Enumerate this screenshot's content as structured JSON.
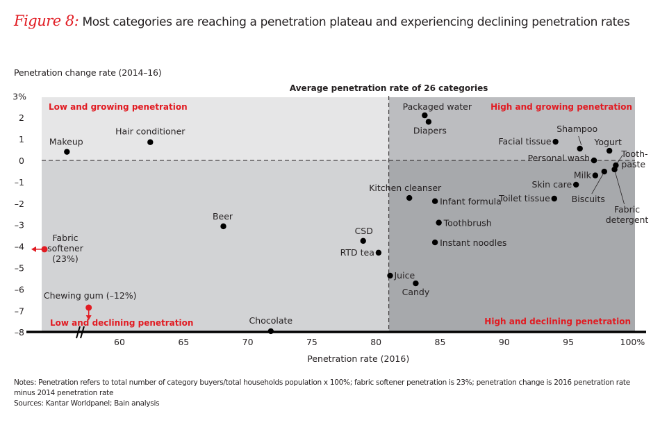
{
  "header": {
    "figure_label": "Figure 8:",
    "title": "Most categories are reaching a penetration plateau and experiencing declining penetration rates"
  },
  "notes": {
    "line1": "Notes: Penetration refers to total number of category buyers/total households population x 100%; fabric softener penetration is 23%; penetration change is 2016 penetration rate",
    "line2": "minus 2014 penetration rate",
    "sources": "Sources: Kantar Worldpanel; Bain analysis"
  },
  "colors": {
    "accent": "#e11b22",
    "quadrant_top_left": "#e6e6e7",
    "quadrant_bottom_left": "#d2d3d5",
    "quadrant_top_right": "#bcbdc0",
    "quadrant_bottom_right": "#a7a9ac",
    "point": "#000000"
  },
  "chart_data": {
    "type": "scatter",
    "title": "Most categories are reaching a penetration plateau and experiencing declining penetration rates",
    "xlabel": "Penetration rate (2016)",
    "ylabel": "Penetration change rate (2014–16)",
    "xlim": [
      54,
      100.2
    ],
    "ylim": [
      -8,
      3
    ],
    "x_ticks": [
      {
        "value": 60,
        "label": "60"
      },
      {
        "value": 65,
        "label": "65"
      },
      {
        "value": 70,
        "label": "70"
      },
      {
        "value": 75,
        "label": "75"
      },
      {
        "value": 80,
        "label": "80"
      },
      {
        "value": 85,
        "label": "85"
      },
      {
        "value": 90,
        "label": "90"
      },
      {
        "value": 95,
        "label": "95"
      },
      {
        "value": 100,
        "label": "100%"
      }
    ],
    "y_ticks": [
      {
        "value": 3,
        "label": "3%"
      },
      {
        "value": 2,
        "label": "2"
      },
      {
        "value": 1,
        "label": "1"
      },
      {
        "value": 0,
        "label": "0"
      },
      {
        "value": -1,
        "label": "–1"
      },
      {
        "value": -2,
        "label": "–2"
      },
      {
        "value": -3,
        "label": "–3"
      },
      {
        "value": -4,
        "label": "–4"
      },
      {
        "value": -5,
        "label": "–5"
      },
      {
        "value": -6,
        "label": "–6"
      },
      {
        "value": -7,
        "label": "–7"
      },
      {
        "value": -8,
        "label": "–8"
      }
    ],
    "axis_break": true,
    "average_line": {
      "x": 81.0,
      "label": "Average penetration rate of 26 categories"
    },
    "zero_line": {
      "y": 0
    },
    "quadrants": {
      "top_left": "Low and growing penetration",
      "top_right": "High and growing penetration",
      "bottom_left": "Low and declining penetration",
      "bottom_right": "High and declining penetration"
    },
    "points": [
      {
        "label": "Makeup",
        "x": 55.9,
        "y": 0.4
      },
      {
        "label": "Hair conditioner",
        "x": 62.4,
        "y": 0.85
      },
      {
        "label": "Packaged water",
        "x": 83.8,
        "y": 2.1
      },
      {
        "label": "Diapers",
        "x": 84.1,
        "y": 1.8
      },
      {
        "label": "Facial tissue",
        "x": 94.0,
        "y": 0.87
      },
      {
        "label": "Shampoo",
        "x": 95.9,
        "y": 0.55
      },
      {
        "label": "Yogurt",
        "x": 98.2,
        "y": 0.45
      },
      {
        "label": "Personal wash",
        "x": 97.0,
        "y": 0.0
      },
      {
        "label": "Tooth-paste",
        "x": 98.7,
        "y": -0.23
      },
      {
        "label": "Fabric detergent",
        "x": 98.6,
        "y": -0.42
      },
      {
        "label": "Biscuits",
        "x": 97.8,
        "y": -0.52
      },
      {
        "label": "Milk",
        "x": 97.1,
        "y": -0.7
      },
      {
        "label": "Skin care",
        "x": 95.6,
        "y": -1.13
      },
      {
        "label": "Toilet tissue",
        "x": 93.9,
        "y": -1.78
      },
      {
        "label": "Kitchen cleanser",
        "x": 82.6,
        "y": -1.75
      },
      {
        "label": "Infant formula",
        "x": 84.6,
        "y": -1.9
      },
      {
        "label": "Toothbrush",
        "x": 84.9,
        "y": -2.9
      },
      {
        "label": "Instant noodles",
        "x": 84.6,
        "y": -3.82
      },
      {
        "label": "Beer",
        "x": 68.1,
        "y": -3.07
      },
      {
        "label": "CSD",
        "x": 79.0,
        "y": -3.75
      },
      {
        "label": "RTD tea",
        "x": 80.2,
        "y": -4.3
      },
      {
        "label": "Juice",
        "x": 81.1,
        "y": -5.37
      },
      {
        "label": "Candy",
        "x": 83.1,
        "y": -5.73
      },
      {
        "label": "Chocolate",
        "x": 71.8,
        "y": -7.96
      }
    ],
    "outliers": [
      {
        "label": "Fabric softener (23%)",
        "label_lines": [
          "Fabric",
          "softener",
          "(23%)"
        ],
        "actual_x": 23,
        "y": -4.14,
        "direction": "left"
      },
      {
        "label": "Chewing gum (–12%)",
        "label_lines": [
          "Chewing gum (–12%)"
        ],
        "x": 57.6,
        "actual_y": -12,
        "direction": "down"
      }
    ]
  }
}
